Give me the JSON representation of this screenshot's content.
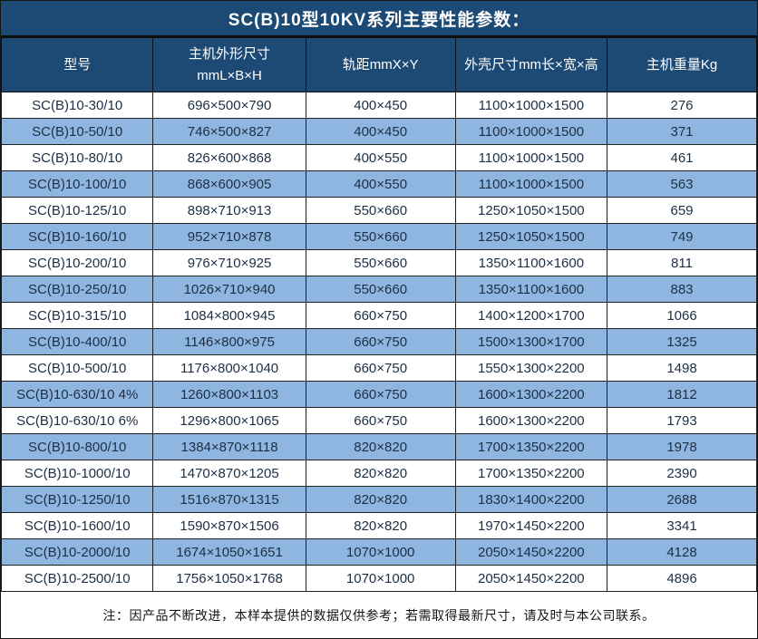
{
  "title": "SC(B)10型10KV系列主要性能参数：",
  "colors": {
    "header_bg": "#1C4A75",
    "row_alt_bg": "#8FB6E0",
    "row_bg": "#FFFFFF",
    "grid_border": "#1F1F1F",
    "header_text": "#FFFFFF",
    "cell_text": "#1C2F45"
  },
  "table": {
    "columns": [
      {
        "label": "型号"
      },
      {
        "label": "主机外形尺寸",
        "label2": "mmL×B×H"
      },
      {
        "label": "轨距mmX×Y"
      },
      {
        "label": "外壳尺寸mm长×宽×高"
      },
      {
        "label": "主机重量Kg"
      }
    ],
    "rows": [
      [
        "SC(B)10-30/10",
        "696×500×790",
        "400×450",
        "1100×1000×1500",
        "276"
      ],
      [
        "SC(B)10-50/10",
        "746×500×827",
        "400×450",
        "1100×1000×1500",
        "371"
      ],
      [
        "SC(B)10-80/10",
        "826×600×868",
        "400×550",
        "1100×1000×1500",
        "461"
      ],
      [
        "SC(B)10-100/10",
        "868×600×905",
        "400×550",
        "1100×1000×1500",
        "563"
      ],
      [
        "SC(B)10-125/10",
        "898×710×913",
        "550×660",
        "1250×1050×1500",
        "659"
      ],
      [
        "SC(B)10-160/10",
        "952×710×878",
        "550×660",
        "1250×1050×1500",
        "749"
      ],
      [
        "SC(B)10-200/10",
        "976×710×925",
        "550×660",
        "1350×1100×1600",
        "811"
      ],
      [
        "SC(B)10-250/10",
        "1026×710×940",
        "550×660",
        "1350×1100×1600",
        "883"
      ],
      [
        "SC(B)10-315/10",
        "1084×800×945",
        "660×750",
        "1400×1200×1700",
        "1066"
      ],
      [
        "SC(B)10-400/10",
        "1146×800×975",
        "660×750",
        "1500×1300×1700",
        "1325"
      ],
      [
        "SC(B)10-500/10",
        "1176×800×1040",
        "660×750",
        "1550×1300×2200",
        "1498"
      ],
      [
        "SC(B)10-630/10 4%",
        "1260×800×1103",
        "660×750",
        "1600×1300×2200",
        "1812"
      ],
      [
        "SC(B)10-630/10 6%",
        "1296×800×1065",
        "660×750",
        "1600×1300×2200",
        "1793"
      ],
      [
        "SC(B)10-800/10",
        "1384×870×1118",
        "820×820",
        "1700×1350×2200",
        "1978"
      ],
      [
        "SC(B)10-1000/10",
        "1470×870×1205",
        "820×820",
        "1700×1350×2200",
        "2390"
      ],
      [
        "SC(B)10-1250/10",
        "1516×870×1315",
        "820×820",
        "1830×1400×2200",
        "2688"
      ],
      [
        "SC(B)10-1600/10",
        "1590×870×1506",
        "820×820",
        "1970×1450×2200",
        "3341"
      ],
      [
        "SC(B)10-2000/10",
        "1674×1050×1651",
        "1070×1000",
        "2050×1450×2200",
        "4128"
      ],
      [
        "SC(B)10-2500/10",
        "1756×1050×1768",
        "1070×1000",
        "2050×1450×2200",
        "4896"
      ]
    ]
  },
  "footnote": "注：因产品不断改进，本样本提供的数据仅供参考；若需取得最新尺寸，请及时与本公司联系。"
}
